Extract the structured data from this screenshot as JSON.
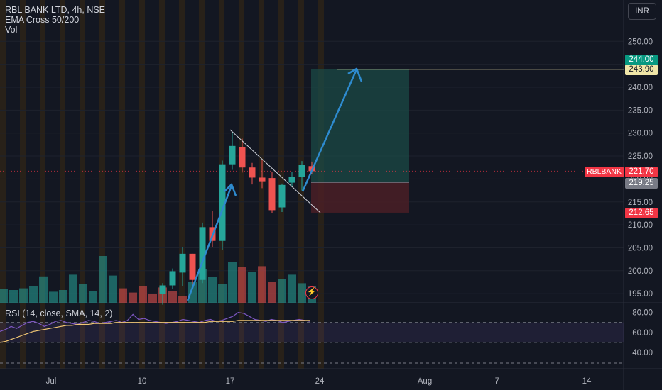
{
  "legend": {
    "title": "RBL BANK LTD, 4h, NSE",
    "indicator": "EMA Cross 50/200",
    "volume": "Vol"
  },
  "currency": "INR",
  "rsi_legend": "RSI (14, close, SMA, 14, 2)",
  "price_badges": {
    "target_top": "244.00",
    "target": "243.90",
    "symbol": "RBLBANK",
    "last": "221.70",
    "entry": "219.25",
    "stop": "212.65"
  },
  "colors": {
    "background": "#131722",
    "up": "#26a69a",
    "down": "#ef5350",
    "session_shade": "#3a2a12",
    "trend_arrow": "#2e8bcf",
    "profit_zone": "#1b4a45",
    "loss_zone": "#4a1f26",
    "target_line": "#f0e6a8"
  },
  "icons": {
    "alert": "lightning-alert-icon"
  },
  "chart_data": [
    {
      "type": "candlestick",
      "title": "RBL BANK LTD, 4h, NSE",
      "ylim": [
        192.5,
        253.5
      ],
      "y_ticks": [
        "250.00",
        "245.00",
        "240.00",
        "235.00",
        "230.00",
        "225.00",
        "220.00",
        "215.00",
        "210.00",
        "205.00",
        "200.00",
        "195.00"
      ],
      "x_ticks": [
        "Jul",
        "10",
        "17",
        "24",
        "Aug",
        "7",
        "14"
      ],
      "candles": [
        {
          "o": 195.0,
          "h": 197.3,
          "l": 192.6,
          "c": 196.8
        },
        {
          "o": 196.8,
          "h": 200.5,
          "l": 196.0,
          "c": 199.9
        },
        {
          "o": 199.6,
          "h": 205.1,
          "l": 196.6,
          "c": 203.7
        },
        {
          "o": 203.7,
          "h": 203.7,
          "l": 197.0,
          "c": 198.0
        },
        {
          "o": 198.0,
          "h": 210.5,
          "l": 197.3,
          "c": 209.5
        },
        {
          "o": 209.5,
          "h": 213.0,
          "l": 205.2,
          "c": 206.5
        },
        {
          "o": 206.5,
          "h": 224.0,
          "l": 204.5,
          "c": 223.2
        },
        {
          "o": 223.2,
          "h": 230.2,
          "l": 222.0,
          "c": 227.2
        },
        {
          "o": 227.0,
          "h": 228.8,
          "l": 221.4,
          "c": 222.5
        },
        {
          "o": 222.5,
          "h": 223.5,
          "l": 218.8,
          "c": 220.3
        },
        {
          "o": 220.3,
          "h": 224.2,
          "l": 218.0,
          "c": 219.5
        },
        {
          "o": 220.2,
          "h": 221.5,
          "l": 212.5,
          "c": 213.2
        },
        {
          "o": 213.8,
          "h": 219.0,
          "l": 212.8,
          "c": 218.7
        },
        {
          "o": 219.2,
          "h": 221.5,
          "l": 218.2,
          "c": 220.5
        },
        {
          "o": 220.5,
          "h": 223.9,
          "l": 217.5,
          "c": 223.0
        },
        {
          "o": 222.8,
          "h": 223.8,
          "l": 221.0,
          "c": 221.7
        }
      ],
      "candle_x_index": [
        16,
        17,
        18,
        19,
        20,
        21,
        22,
        23,
        24,
        25,
        26,
        27,
        28,
        29,
        30,
        31
      ],
      "volume": [
        {
          "v": 16,
          "up": true
        },
        {
          "v": 15,
          "up": true
        },
        {
          "v": 17,
          "up": true
        },
        {
          "v": 20,
          "up": true
        },
        {
          "v": 31,
          "up": true
        },
        {
          "v": 13,
          "up": true
        },
        {
          "v": 15,
          "up": true
        },
        {
          "v": 33,
          "up": true
        },
        {
          "v": 22,
          "up": true
        },
        {
          "v": 14,
          "up": true
        },
        {
          "v": 55,
          "up": true
        },
        {
          "v": 32,
          "up": true
        },
        {
          "v": 17,
          "up": false
        },
        {
          "v": 12,
          "up": false
        },
        {
          "v": 20,
          "up": false
        },
        {
          "v": 10,
          "up": false
        },
        {
          "v": 18,
          "up": false
        },
        {
          "v": 14,
          "up": false
        },
        {
          "v": 8,
          "up": false
        },
        {
          "v": 25,
          "up": true
        },
        {
          "v": 40,
          "up": true
        },
        {
          "v": 30,
          "up": true
        },
        {
          "v": 22,
          "up": true
        },
        {
          "v": 48,
          "up": true
        },
        {
          "v": 42,
          "up": false
        },
        {
          "v": 36,
          "up": true
        },
        {
          "v": 43,
          "up": false
        },
        {
          "v": 25,
          "up": false
        },
        {
          "v": 28,
          "up": true
        },
        {
          "v": 33,
          "up": true
        },
        {
          "v": 23,
          "up": true
        },
        {
          "v": 20,
          "up": true
        }
      ],
      "position": {
        "target": 243.9,
        "entry": 219.25,
        "stop": 212.65
      },
      "last_price": 221.7
    },
    {
      "type": "line",
      "title": "RSI (14, close, SMA, 14, 2)",
      "ylim": [
        30,
        85
      ],
      "y_ticks": [
        "80.00",
        "60.00",
        "40.00"
      ],
      "levels": [
        70,
        50,
        30
      ],
      "series": [
        {
          "name": "RSI",
          "values": [
            61,
            63,
            66,
            64,
            67,
            70,
            71,
            69,
            66,
            68,
            71,
            72,
            70,
            69,
            68,
            70,
            72,
            71,
            69,
            70,
            71,
            72,
            70,
            72,
            78,
            73,
            74,
            72,
            71,
            70,
            69,
            70,
            71,
            73,
            72,
            71,
            70,
            72,
            73,
            71,
            72,
            74,
            76,
            80,
            79,
            76,
            73,
            72,
            71,
            73,
            72,
            70,
            71,
            72,
            73,
            72,
            71
          ]
        },
        {
          "name": "RSI-based MA",
          "values": [
            50,
            51,
            53,
            55,
            57,
            59,
            61,
            62,
            63,
            64,
            65,
            66,
            67,
            67,
            68,
            68,
            68,
            69,
            69,
            69,
            69,
            70,
            70,
            70,
            70,
            70,
            70,
            70,
            70,
            70,
            70,
            70,
            70,
            70,
            70,
            70,
            70,
            70,
            71,
            71,
            71,
            71,
            71,
            72,
            72,
            72,
            72,
            72,
            72,
            72,
            72,
            72,
            72,
            72,
            72,
            72,
            72
          ]
        }
      ]
    }
  ]
}
